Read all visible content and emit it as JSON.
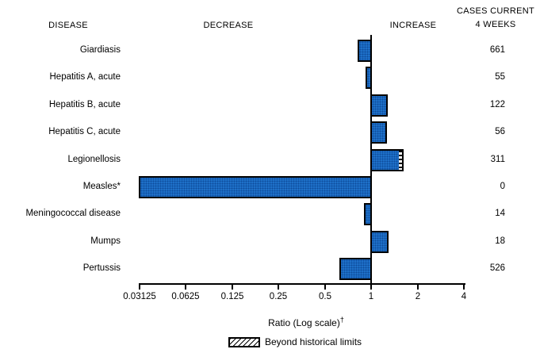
{
  "headers": {
    "disease": "DISEASE",
    "decrease": "DECREASE",
    "increase": "INCREASE",
    "cases_line1": "CASES CURRENT",
    "cases_line2": "4 WEEKS"
  },
  "axis": {
    "label": "Ratio (Log scale)",
    "dagger": "†"
  },
  "legend": {
    "label": "Beyond historical limits",
    "swatch_style": "hatched"
  },
  "colors": {
    "bar_fill": "#1f71c9",
    "bar_dot": "#0d4c9c",
    "bar_border": "#000000",
    "text": "#000000",
    "background": "#ffffff"
  },
  "chart_data": {
    "type": "bar",
    "orientation": "horizontal",
    "x_scale": "log2",
    "xlim": [
      0.03125,
      4
    ],
    "x_ticks": [
      0.03125,
      0.0625,
      0.125,
      0.25,
      0.5,
      1,
      2,
      4
    ],
    "xlabel": "Ratio (Log scale)†",
    "baseline_ratio": 1,
    "grid": false,
    "legend_position": "bottom",
    "rows": [
      {
        "disease": "Giardiasis",
        "ratio": 0.83,
        "cases_current_4_weeks": 661,
        "beyond_historical_limits": false
      },
      {
        "disease": "Hepatitis A, acute",
        "ratio": 0.93,
        "cases_current_4_weeks": 55,
        "beyond_historical_limits": false
      },
      {
        "disease": "Hepatitis B, acute",
        "ratio": 1.27,
        "cases_current_4_weeks": 122,
        "beyond_historical_limits": false
      },
      {
        "disease": "Hepatitis C, acute",
        "ratio": 1.25,
        "cases_current_4_weeks": 56,
        "beyond_historical_limits": false
      },
      {
        "disease": "Legionellosis",
        "ratio": 1.6,
        "cases_current_4_weeks": 311,
        "beyond_historical_limits": true
      },
      {
        "disease": "Measles*",
        "ratio": 0.03125,
        "cases_current_4_weeks": 0,
        "beyond_historical_limits": false
      },
      {
        "disease": "Meningococcal disease",
        "ratio": 0.91,
        "cases_current_4_weeks": 14,
        "beyond_historical_limits": false
      },
      {
        "disease": "Mumps",
        "ratio": 1.28,
        "cases_current_4_weeks": 18,
        "beyond_historical_limits": false
      },
      {
        "disease": "Pertussis",
        "ratio": 0.63,
        "cases_current_4_weeks": 526,
        "beyond_historical_limits": false
      }
    ]
  }
}
